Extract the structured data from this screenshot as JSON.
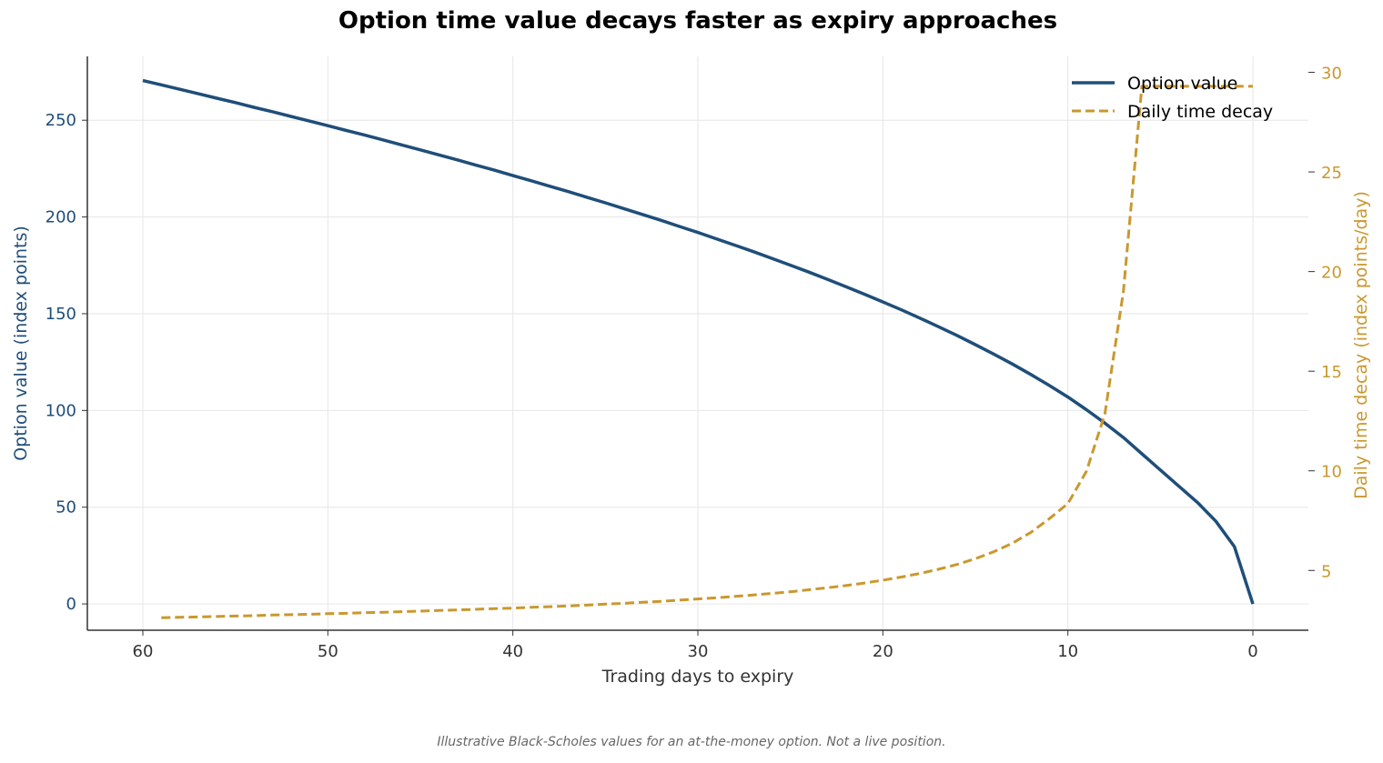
{
  "chart_data": {
    "type": "line",
    "title": "Option time value decays faster as expiry approaches",
    "xlabel": "Trading days to expiry",
    "ylabel_left": "Option value (index points)",
    "ylabel_right": "Daily time decay (index points/day)",
    "x_reversed": true,
    "xlim": [
      63,
      -3
    ],
    "ylim_left": [
      -13.6,
      283
    ],
    "ylim_right": [
      2.0,
      30.8
    ],
    "x_ticks": [
      60,
      50,
      40,
      30,
      20,
      10,
      0
    ],
    "y_ticks_left": [
      0,
      50,
      100,
      150,
      200,
      250
    ],
    "y_ticks_right": [
      5,
      10,
      15,
      20,
      25,
      30
    ],
    "grid": true,
    "legend_position": "top-right",
    "colors": {
      "option_value": "#1f4e79",
      "time_decay": "#c9982e",
      "grid": "#e6e6e6",
      "axis": "#333333",
      "tick_text": "#333333"
    },
    "series": [
      {
        "name": "Option value",
        "axis": "left",
        "style": "solid",
        "x": [
          60,
          59,
          58,
          57,
          56,
          55,
          54,
          53,
          52,
          51,
          50,
          49,
          48,
          47,
          46,
          45,
          44,
          43,
          42,
          41,
          40,
          39,
          38,
          37,
          36,
          35,
          34,
          33,
          32,
          31,
          30,
          29,
          28,
          27,
          26,
          25,
          24,
          23,
          22,
          21,
          20,
          19,
          18,
          17,
          16,
          15,
          14,
          13,
          12,
          11,
          10,
          9,
          8,
          7,
          6,
          5,
          4,
          3,
          2,
          1,
          0
        ],
        "values": [
          270.5,
          268.3,
          266.0,
          263.7,
          261.4,
          259.1,
          256.7,
          254.4,
          252.0,
          249.6,
          247.2,
          244.7,
          242.3,
          239.8,
          237.2,
          234.7,
          232.1,
          229.5,
          226.8,
          224.2,
          221.4,
          218.7,
          215.9,
          213.1,
          210.2,
          207.3,
          204.3,
          201.3,
          198.3,
          195.1,
          192.0,
          188.7,
          185.4,
          182.1,
          178.6,
          175.1,
          171.5,
          167.8,
          164.0,
          160.1,
          156.1,
          152.0,
          147.7,
          143.3,
          138.8,
          134.0,
          129.1,
          124.0,
          118.6,
          112.9,
          106.9,
          100.4,
          93.5,
          86.0,
          77.6,
          69.2,
          60.8,
          52.5,
          42.7,
          29.6,
          0
        ]
      },
      {
        "name": "Daily time decay",
        "axis": "right",
        "style": "dashed",
        "x": [
          59,
          58,
          57,
          56,
          55,
          54,
          53,
          52,
          51,
          50,
          49,
          48,
          47,
          46,
          45,
          44,
          43,
          42,
          41,
          40,
          39,
          38,
          37,
          36,
          35,
          34,
          33,
          32,
          31,
          30,
          29,
          28,
          27,
          26,
          25,
          24,
          23,
          22,
          21,
          20,
          19,
          18,
          17,
          16,
          15,
          14,
          13,
          12,
          11,
          10,
          9,
          8,
          7,
          6,
          5,
          4,
          3,
          2,
          1,
          0
        ],
        "values": [
          2.63,
          2.65,
          2.67,
          2.69,
          2.71,
          2.73,
          2.76,
          2.78,
          2.8,
          2.83,
          2.85,
          2.88,
          2.9,
          2.93,
          2.96,
          2.99,
          3.02,
          3.05,
          3.08,
          3.11,
          3.15,
          3.18,
          3.22,
          3.26,
          3.31,
          3.35,
          3.4,
          3.45,
          3.51,
          3.57,
          3.63,
          3.7,
          3.77,
          3.85,
          3.93,
          4.03,
          4.13,
          4.24,
          4.37,
          4.51,
          4.67,
          4.85,
          5.06,
          5.3,
          5.59,
          5.94,
          6.37,
          6.91,
          7.6,
          8.36,
          9.97,
          12.85,
          19.0,
          29.3,
          29.3,
          29.3,
          29.3,
          29.3,
          29.3,
          29.3
        ]
      }
    ],
    "legend": [
      "Option value",
      "Daily time decay"
    ]
  },
  "footnote": "Illustrative Black-Scholes values for an at-the-money option. Not a live position."
}
